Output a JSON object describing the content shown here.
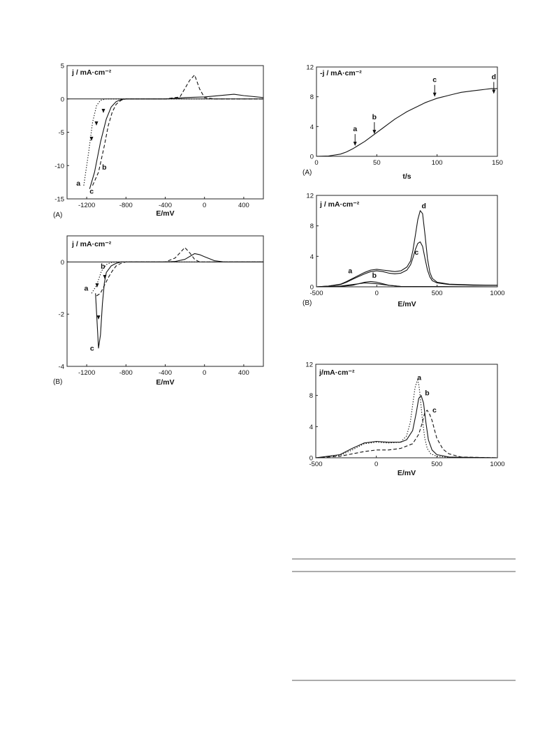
{
  "chart_data": [
    {
      "panel": "(A)",
      "type": "line",
      "title": "j / mA·cm⁻²",
      "xlabel": "E/mV",
      "xlim": [
        -1400,
        600
      ],
      "ylim": [
        -15,
        5
      ],
      "xticks": [
        -1200,
        -800,
        -400,
        0,
        400
      ],
      "yticks": [
        5,
        0,
        -5,
        -10,
        -15
      ],
      "curve_labels": [
        "a",
        "b",
        "c"
      ],
      "series": [
        {
          "label": "a",
          "style": "dotted",
          "x": [
            -1230,
            -1180,
            -1140,
            -1100,
            -1060,
            -1000,
            -900,
            -800,
            600
          ],
          "y": [
            -13,
            -8,
            -3.5,
            -1,
            -0.2,
            0,
            0,
            0,
            0
          ]
        },
        {
          "label": "b",
          "style": "dashed",
          "x": [
            -1140,
            -1080,
            -1020,
            -980,
            -940,
            -900,
            -850,
            -800,
            -400,
            -250,
            -150,
            -100,
            -50,
            0,
            100,
            600
          ],
          "y": [
            -13,
            -11,
            -7,
            -4,
            -2,
            -0.8,
            -0.2,
            0,
            0,
            0.3,
            2.8,
            3.6,
            1.5,
            0.2,
            0,
            0
          ]
        },
        {
          "label": "c",
          "style": "solid",
          "x": [
            -1170,
            -1120,
            -1060,
            -1000,
            -950,
            -900,
            -850,
            -800,
            -400,
            -200,
            0,
            300,
            400,
            600
          ],
          "y": [
            -13.5,
            -11,
            -6.5,
            -3,
            -1.2,
            -0.4,
            -0.1,
            0,
            0,
            0.2,
            0.3,
            0.7,
            0.5,
            0.2
          ]
        }
      ]
    },
    {
      "panel": "(B)",
      "type": "line",
      "title": "j / mA·cm⁻²",
      "xlabel": "E/mV",
      "xlim": [
        -1400,
        600
      ],
      "ylim": [
        -4,
        1
      ],
      "xticks": [
        -1200,
        -800,
        -400,
        0,
        400
      ],
      "yticks": [
        0,
        -2,
        -4
      ],
      "curve_labels": [
        "a",
        "b",
        "c"
      ],
      "series": [
        {
          "label": "a",
          "style": "dotted",
          "x": [
            -1150,
            -1100,
            -1050,
            -1000,
            -950,
            -900,
            600
          ],
          "y": [
            -1.2,
            -0.9,
            -0.35,
            -0.1,
            -0.02,
            0,
            0
          ]
        },
        {
          "label": "b",
          "style": "dashed",
          "x": [
            -1100,
            -1060,
            -1020,
            -980,
            -940,
            -900,
            -850,
            -800,
            -400,
            -300,
            -200,
            -150,
            -100,
            -50,
            600
          ],
          "y": [
            -1.3,
            -1.2,
            -0.9,
            -0.6,
            -0.35,
            -0.15,
            -0.05,
            0,
            0,
            0.15,
            0.55,
            0.35,
            0.1,
            0,
            0
          ]
        },
        {
          "label": "c",
          "style": "solid",
          "x": [
            -1110,
            -1080,
            -1060,
            -1040,
            -1020,
            -1000,
            -950,
            -900,
            -850,
            -800,
            -400,
            -300,
            -200,
            -100,
            -50,
            0,
            100,
            200,
            600
          ],
          "y": [
            -1.2,
            -3.3,
            -2.8,
            -1.6,
            -0.8,
            -0.4,
            -0.15,
            -0.05,
            0,
            0,
            0,
            0.02,
            0.1,
            0.32,
            0.28,
            0.2,
            0.05,
            0,
            0
          ]
        }
      ]
    },
    {
      "panel": "(A)",
      "type": "line",
      "title": "-j / mA·cm⁻²",
      "xlabel": "t/s",
      "xlim": [
        0,
        150
      ],
      "ylim": [
        0,
        12
      ],
      "xticks": [
        0,
        50,
        100,
        150
      ],
      "yticks": [
        12,
        8,
        4,
        0
      ],
      "annotations": [
        {
          "label": "a",
          "x": 32,
          "y": 1.3
        },
        {
          "label": "b",
          "x": 48,
          "y": 2.9
        },
        {
          "label": "c",
          "x": 98,
          "y": 7.9
        },
        {
          "label": "d",
          "x": 147,
          "y": 8.3
        }
      ],
      "series": [
        {
          "style": "solid",
          "x": [
            0,
            10,
            20,
            25,
            30,
            35,
            40,
            45,
            50,
            55,
            60,
            65,
            70,
            75,
            80,
            85,
            90,
            95,
            100,
            105,
            110,
            115,
            120,
            125,
            130,
            135,
            140,
            145,
            150
          ],
          "y": [
            0,
            0.05,
            0.3,
            0.6,
            1.0,
            1.5,
            2.0,
            2.6,
            3.2,
            3.8,
            4.4,
            5.0,
            5.5,
            6.0,
            6.4,
            6.8,
            7.2,
            7.5,
            7.8,
            8.0,
            8.2,
            8.4,
            8.6,
            8.7,
            8.8,
            8.9,
            9.0,
            9.1,
            9.1
          ]
        }
      ]
    },
    {
      "panel": "(B)",
      "type": "line",
      "title": "j / mA·cm⁻²",
      "xlabel": "E/mV",
      "xlim": [
        -500,
        1000
      ],
      "ylim": [
        0,
        12
      ],
      "xticks": [
        -500,
        0,
        500,
        1000
      ],
      "yticks": [
        12,
        8,
        4,
        0
      ],
      "curve_labels": [
        "a",
        "b",
        "c",
        "d"
      ],
      "series": [
        {
          "label": "a",
          "style": "solid",
          "x": [
            -500,
            -300,
            -200,
            -100,
            0,
            100,
            200,
            600,
            1000
          ],
          "y": [
            0,
            0.1,
            0.3,
            0.5,
            0.4,
            0.2,
            0.05,
            0,
            0
          ]
        },
        {
          "label": "b",
          "style": "solid",
          "x": [
            -500,
            -300,
            -200,
            -100,
            -50,
            0,
            100,
            200,
            1000
          ],
          "y": [
            0,
            0.05,
            0.2,
            0.6,
            0.7,
            0.6,
            0.2,
            0.05,
            0
          ]
        },
        {
          "label": "c",
          "style": "solid",
          "x": [
            -500,
            -400,
            -300,
            -250,
            -200,
            -100,
            -50,
            0,
            50,
            100,
            150,
            200,
            250,
            280,
            300,
            320,
            340,
            360,
            380,
            400,
            420,
            440,
            460,
            500,
            600,
            800,
            1000
          ],
          "y": [
            0,
            0.1,
            0.3,
            0.6,
            1.0,
            1.7,
            2.0,
            2.1,
            2.0,
            1.8,
            1.7,
            1.8,
            2.2,
            2.9,
            3.8,
            4.9,
            5.7,
            5.9,
            5.3,
            3.7,
            2.2,
            1.3,
            0.8,
            0.5,
            0.3,
            0.2,
            0.2
          ]
        },
        {
          "label": "d",
          "style": "solid",
          "x": [
            -500,
            -400,
            -300,
            -250,
            -200,
            -100,
            -50,
            0,
            50,
            100,
            150,
            200,
            250,
            280,
            300,
            320,
            340,
            360,
            380,
            400,
            420,
            440,
            460,
            500,
            600,
            800,
            1000
          ],
          "y": [
            0,
            0.1,
            0.35,
            0.7,
            1.1,
            1.9,
            2.2,
            2.3,
            2.2,
            2.1,
            2.0,
            2.1,
            2.6,
            3.4,
            4.8,
            6.8,
            8.8,
            10.0,
            9.6,
            6.8,
            3.7,
            1.9,
            1.1,
            0.6,
            0.35,
            0.25,
            0.2
          ]
        }
      ]
    },
    {
      "panel": "",
      "type": "line",
      "title": "j/mA·cm⁻²",
      "xlabel": "E/mV",
      "xlim": [
        -500,
        1000
      ],
      "ylim": [
        0,
        12
      ],
      "xticks": [
        -500,
        0,
        500,
        1000
      ],
      "yticks": [
        12,
        8,
        4,
        0
      ],
      "curve_labels": [
        "a",
        "b",
        "c"
      ],
      "series": [
        {
          "label": "a",
          "style": "dotted",
          "x": [
            -500,
            -300,
            -200,
            -100,
            0,
            100,
            200,
            250,
            280,
            300,
            320,
            340,
            350,
            360,
            380,
            400,
            420,
            450,
            500,
            600,
            1000
          ],
          "y": [
            0,
            0.3,
            1.0,
            1.8,
            2.0,
            1.9,
            2.0,
            2.8,
            4.5,
            6.8,
            9.0,
            10.0,
            9.5,
            8.2,
            5.0,
            2.5,
            1.2,
            0.5,
            0.2,
            0.05,
            0
          ]
        },
        {
          "label": "b",
          "style": "solid",
          "x": [
            -500,
            -300,
            -200,
            -100,
            0,
            100,
            200,
            250,
            300,
            330,
            350,
            370,
            390,
            410,
            430,
            460,
            500,
            600,
            1000
          ],
          "y": [
            0,
            0.4,
            1.2,
            1.9,
            2.1,
            2.0,
            2.0,
            2.3,
            3.5,
            5.8,
            7.6,
            8.0,
            7.0,
            4.5,
            2.3,
            1.0,
            0.4,
            0.1,
            0
          ]
        },
        {
          "label": "c",
          "style": "dashed",
          "x": [
            -500,
            -300,
            -200,
            -100,
            0,
            100,
            200,
            300,
            350,
            380,
            400,
            420,
            440,
            460,
            480,
            500,
            550,
            600,
            700,
            1000
          ],
          "y": [
            0,
            0.2,
            0.5,
            0.8,
            1.0,
            1.0,
            1.2,
            1.8,
            3.0,
            4.5,
            5.8,
            6.1,
            5.6,
            4.8,
            3.6,
            2.5,
            1.1,
            0.5,
            0.1,
            0
          ]
        }
      ]
    }
  ],
  "table": {
    "present": true
  }
}
